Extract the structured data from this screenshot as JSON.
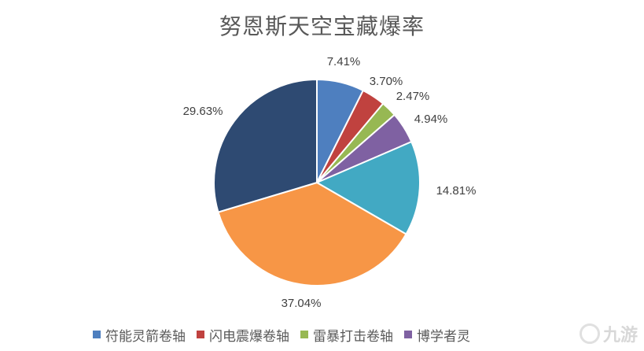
{
  "chart_data": {
    "type": "pie",
    "title": "努恩斯天空宝藏爆率",
    "slices": [
      {
        "label": "符能灵箭卷轴",
        "value": 7.41,
        "display": "7.41%",
        "color": "#4e7fbf"
      },
      {
        "label": "闪电震爆卷轴",
        "value": 3.7,
        "display": "3.70%",
        "color": "#c0423f"
      },
      {
        "label": "雷暴打击卷轴",
        "value": 2.47,
        "display": "2.47%",
        "color": "#97b853"
      },
      {
        "label": "博学者灵",
        "value": 4.94,
        "display": "4.94%",
        "color": "#7f61a2"
      },
      {
        "label": "",
        "value": 14.81,
        "display": "14.81%",
        "color": "#42a9c3"
      },
      {
        "label": "",
        "value": 37.04,
        "display": "37.04%",
        "color": "#f79646"
      },
      {
        "label": "",
        "value": 29.63,
        "display": "29.63%",
        "color": "#2e4a72"
      }
    ],
    "legend": {
      "position": "bottom"
    }
  },
  "watermark": {
    "text": "九游"
  }
}
